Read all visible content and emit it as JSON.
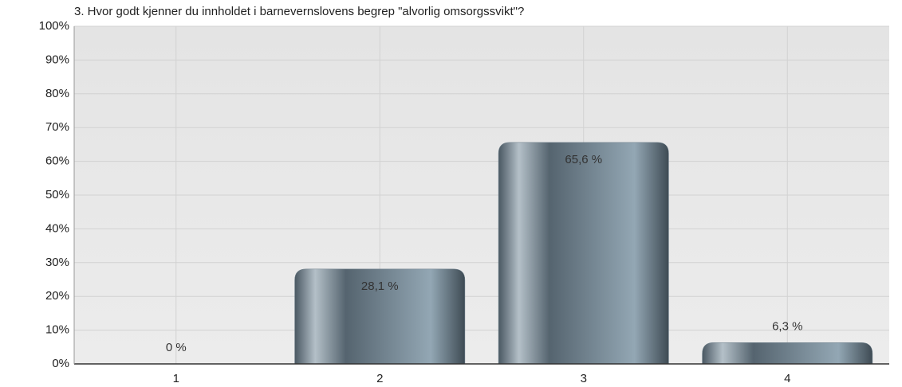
{
  "chart_data": {
    "type": "bar",
    "title": "3. Hvor godt kjenner du innholdet i barnevernslovens begrep \"alvorlig omsorgssvikt\"?",
    "categories": [
      "1",
      "2",
      "3",
      "4"
    ],
    "values": [
      0,
      28.1,
      65.6,
      6.3
    ],
    "value_labels": [
      "0 %",
      "28,1 %",
      "65,6 %",
      "6,3 %"
    ],
    "color": "#6b7d89",
    "ylim": [
      0,
      100
    ],
    "yticks": [
      {
        "value": 0,
        "label": "0%"
      },
      {
        "value": 10,
        "label": "10%"
      },
      {
        "value": 20,
        "label": "20%"
      },
      {
        "value": 30,
        "label": "30%"
      },
      {
        "value": 40,
        "label": "40%"
      },
      {
        "value": 50,
        "label": "50%"
      },
      {
        "value": 60,
        "label": "60%"
      },
      {
        "value": 70,
        "label": "70%"
      },
      {
        "value": 80,
        "label": "80%"
      },
      {
        "value": 90,
        "label": "90%"
      },
      {
        "value": 100,
        "label": "100%"
      }
    ],
    "grid": true
  }
}
